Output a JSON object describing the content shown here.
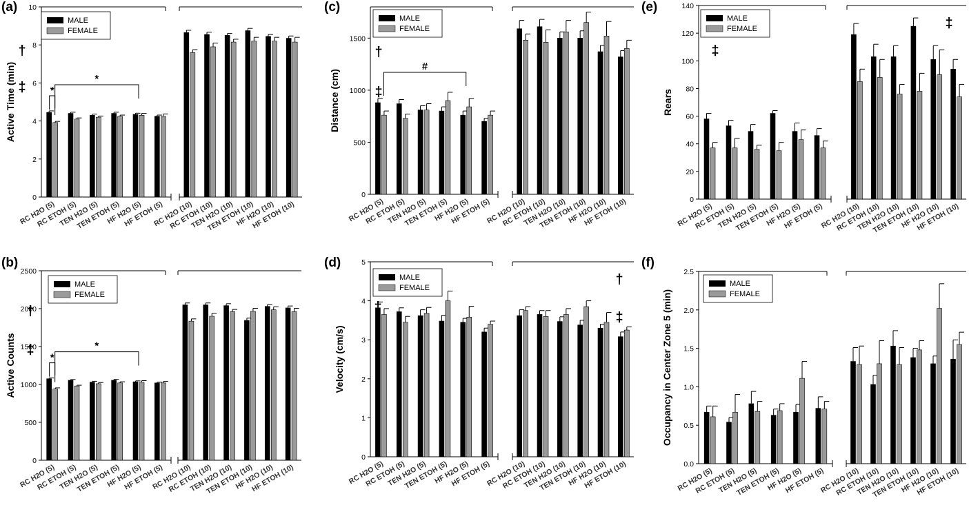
{
  "legend": {
    "male": "MALE",
    "female": "FEMALE"
  },
  "colors": {
    "male": "#000000",
    "female": "#9a9a9a",
    "axis": "#000000"
  },
  "chart_data": [
    {
      "panel_label": "(a)",
      "type": "bar",
      "ylabel": "Active Time (min)",
      "ylim": [
        0,
        10
      ],
      "yticks": [
        0,
        2,
        4,
        6,
        8,
        10
      ],
      "categories": [
        "RC H2O (5)",
        "RC ETOH (5)",
        "TEN H2O (5)",
        "TEN ETOH (5)",
        "HF H2O (5)",
        "HF ETOH (5)",
        "RC H2O (10)",
        "RC ETOH (10)",
        "TEN H2O (10)",
        "TEN ETOH (10)",
        "HF H2O (10)",
        "HF ETOH (10)"
      ],
      "series": [
        {
          "name": "MALE",
          "values": [
            4.45,
            4.4,
            4.3,
            4.4,
            4.35,
            4.25,
            8.65,
            8.55,
            8.5,
            8.75,
            8.45,
            8.35
          ],
          "errors": [
            0.08,
            0.06,
            0.06,
            0.06,
            0.06,
            0.06,
            0.12,
            0.12,
            0.1,
            0.12,
            0.1,
            0.12
          ]
        },
        {
          "name": "FEMALE",
          "values": [
            3.92,
            4.1,
            4.2,
            4.25,
            4.3,
            4.25,
            7.6,
            7.9,
            8.15,
            8.2,
            8.2,
            8.15
          ],
          "errors": [
            0.06,
            0.06,
            0.06,
            0.06,
            0.1,
            0.12,
            0.15,
            0.2,
            0.15,
            0.2,
            0.2,
            0.25
          ]
        }
      ],
      "symbols": [
        "†",
        "‡"
      ],
      "annotations": [
        {
          "text": "*",
          "from": 0,
          "to": 0
        },
        {
          "text": "*",
          "from": 0,
          "to": 4
        }
      ]
    },
    {
      "panel_label": "(b)",
      "type": "bar",
      "ylabel": "Active Counts",
      "ylim": [
        0,
        2500
      ],
      "yticks": [
        0,
        500,
        1000,
        1500,
        2000,
        2500
      ],
      "categories": [
        "RC H2O (5)",
        "RC ETOH (5)",
        "TEN H2O (5)",
        "TEN ETOH (5)",
        "HF H2O (5)",
        "HF ETOH (5)",
        "RC H2O (10)",
        "RC ETOH (10)",
        "TEN H2O (10)",
        "TEN ETOH (10)",
        "HF H2O (10)",
        "HF ETOH (10)"
      ],
      "series": [
        {
          "name": "MALE",
          "values": [
            1075,
            1055,
            1030,
            1055,
            1035,
            1020,
            2050,
            2050,
            2040,
            1845,
            2030,
            2010
          ],
          "errors": [
            10,
            10,
            12,
            12,
            12,
            10,
            25,
            25,
            25,
            30,
            25,
            25
          ]
        },
        {
          "name": "FEMALE",
          "values": [
            940,
            980,
            1010,
            1020,
            1030,
            1020,
            1835,
            1900,
            1960,
            1965,
            1985,
            1960
          ],
          "errors": [
            15,
            10,
            15,
            15,
            20,
            20,
            30,
            40,
            30,
            40,
            40,
            45
          ]
        }
      ],
      "symbols": [
        "†",
        "‡"
      ],
      "annotations": [
        {
          "text": "*",
          "from": 0,
          "to": 0
        },
        {
          "text": "*",
          "from": 0,
          "to": 4
        }
      ]
    },
    {
      "panel_label": "(c)",
      "type": "bar",
      "ylabel": "Distance (cm)",
      "ylim": [
        0,
        1800
      ],
      "yticks": [
        0,
        500,
        1000,
        1500
      ],
      "categories": [
        "RC H2O (5)",
        "RC ETOH (5)",
        "TEN H2O (5)",
        "TEN ETOH (5)",
        "HF H2O (5)",
        "HF ETOH (5)",
        "RC H2O (10)",
        "RC ETOH (10)",
        "TEN H2O (10)",
        "TEN ETOH (10)",
        "HF H2O (10)",
        "HF ETOH (10)"
      ],
      "series": [
        {
          "name": "MALE",
          "values": [
            880,
            870,
            810,
            800,
            760,
            700,
            1590,
            1610,
            1500,
            1500,
            1370,
            1320
          ],
          "errors": [
            40,
            40,
            40,
            40,
            40,
            30,
            80,
            70,
            60,
            70,
            60,
            60
          ]
        },
        {
          "name": "FEMALE",
          "values": [
            760,
            730,
            810,
            900,
            840,
            760,
            1480,
            1460,
            1560,
            1650,
            1520,
            1400
          ],
          "errors": [
            40,
            40,
            60,
            80,
            80,
            40,
            60,
            120,
            110,
            100,
            140,
            80
          ]
        }
      ],
      "symbols": [
        "†",
        "‡"
      ],
      "annotations": [
        {
          "text": "#",
          "from": 0,
          "to": 4
        }
      ]
    },
    {
      "panel_label": "(d)",
      "type": "bar",
      "ylabel": "Velocity (cm/s)",
      "ylim": [
        0,
        5
      ],
      "yticks": [
        0,
        1,
        2,
        3,
        4,
        5
      ],
      "categories": [
        "RC H2O (5)",
        "RC ETOH (5)",
        "TEN H2O (5)",
        "TEN ETOH (5)",
        "HF H2O (5)",
        "HF ETOH (5)",
        "RC H2O (10)",
        "RC ETOH (10)",
        "TEN H2O (10)",
        "TEN ETOH (10)",
        "HF H2O (10)",
        "HF ETOH (10)"
      ],
      "series": [
        {
          "name": "MALE",
          "values": [
            3.82,
            3.72,
            3.62,
            3.48,
            3.45,
            3.2,
            3.62,
            3.65,
            3.47,
            3.38,
            3.3,
            3.08
          ],
          "errors": [
            0.15,
            0.1,
            0.15,
            0.15,
            0.1,
            0.1,
            0.15,
            0.1,
            0.12,
            0.12,
            0.1,
            0.12
          ]
        },
        {
          "name": "FEMALE",
          "values": [
            3.65,
            3.45,
            3.68,
            4.0,
            3.58,
            3.4,
            3.75,
            3.6,
            3.65,
            3.85,
            3.45,
            3.25
          ],
          "errors": [
            0.15,
            0.15,
            0.15,
            0.25,
            0.28,
            0.08,
            0.1,
            0.15,
            0.15,
            0.15,
            0.25,
            0.08
          ]
        }
      ],
      "symbols": [
        "†",
        "†",
        "‡"
      ],
      "annotations": []
    },
    {
      "panel_label": "(e)",
      "type": "bar",
      "ylabel": "Rears",
      "ylim": [
        0,
        140
      ],
      "yticks": [
        0,
        20,
        40,
        60,
        80,
        100,
        120,
        140
      ],
      "categories": [
        "RC H2O (5)",
        "RC ETOH (5)",
        "TEN H2O (5)",
        "TEN ETOH (5)",
        "HF H2O (5)",
        "HF ETOH (5)",
        "RC H2O (10)",
        "RC ETOH (10)",
        "TEN H2O (10)",
        "TEN ETOH (10)",
        "HF H2O (10)",
        "HF ETOH (10)"
      ],
      "series": [
        {
          "name": "MALE",
          "values": [
            58,
            53,
            49,
            62,
            49,
            46,
            119,
            103,
            103,
            125,
            101,
            94
          ],
          "errors": [
            4,
            4,
            5,
            2,
            6,
            5,
            8,
            9,
            8,
            6,
            10,
            7
          ]
        },
        {
          "name": "FEMALE",
          "values": [
            37,
            37,
            36,
            35,
            43,
            37,
            85,
            88,
            76,
            78,
            90,
            74
          ],
          "errors": [
            4,
            7,
            3,
            6,
            7,
            5,
            9,
            13,
            7,
            13,
            18,
            9
          ]
        }
      ],
      "symbols": [
        "‡",
        "‡"
      ],
      "annotations": []
    },
    {
      "panel_label": "(f)",
      "type": "bar",
      "ylabel": "Occupancy in Center Zone 5 (min)",
      "ylim": [
        0,
        2.5
      ],
      "yticks": [
        0.0,
        0.5,
        1.0,
        1.5,
        2.0,
        2.5
      ],
      "categories": [
        "RC H2O (5)",
        "RC ETOH (5)",
        "TEN H2O (5)",
        "TEN ETOH (5)",
        "HF H2O (5)",
        "HF ETOH (5)",
        "RC H2O (10)",
        "RC ETOH (10)",
        "TEN H2O (10)",
        "TEN ETOH (10)",
        "HF H2O (10)",
        "HF ETOH (10)"
      ],
      "series": [
        {
          "name": "MALE",
          "values": [
            0.67,
            0.54,
            0.78,
            0.63,
            0.67,
            0.72,
            1.33,
            1.03,
            1.53,
            1.38,
            1.3,
            1.36
          ],
          "errors": [
            0.08,
            0.06,
            0.16,
            0.08,
            0.1,
            0.15,
            0.18,
            0.12,
            0.2,
            0.12,
            0.1,
            0.25
          ]
        },
        {
          "name": "FEMALE",
          "values": [
            0.61,
            0.67,
            0.68,
            0.69,
            1.11,
            0.71,
            1.29,
            1.3,
            1.29,
            1.48,
            2.02,
            1.55
          ],
          "errors": [
            0.14,
            0.23,
            0.13,
            0.09,
            0.22,
            0.1,
            0.24,
            0.3,
            0.22,
            0.12,
            0.32,
            0.16
          ]
        }
      ],
      "symbols": [],
      "annotations": []
    }
  ]
}
